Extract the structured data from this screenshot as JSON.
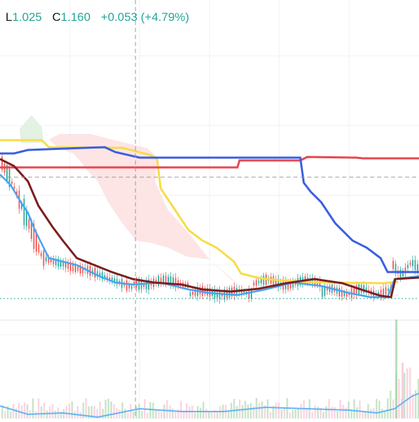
{
  "legend": {
    "low_label": "L",
    "low_value": "1.025",
    "close_label": "C",
    "close_value": "1.160",
    "change": "+0.053 (+4.79%)"
  },
  "colors": {
    "background": "#ffffff",
    "grid": "#eef0f3",
    "crosshair": "#9598a1",
    "up": "#26a69a",
    "down": "#ef5350",
    "tenkan": "#2962ff",
    "kijun": "#b71c1c",
    "chikou": "#43a047",
    "senkou_a": "#f4d03f",
    "senkou_b": "#ef5350",
    "kumo_bearish": "#fde2e2",
    "kumo_bullish": "#dcefdc",
    "blue_line": "#3b5fe0",
    "yellow_line": "#f7dc4a",
    "red_line": "#e8474f",
    "ma_fast": "#42a5f5",
    "ma_slow": "#7b1f1f",
    "volume_up": "#a5d6a7",
    "volume_down": "#f8bbd0",
    "volume_ma": "#64b5f6"
  }
}
